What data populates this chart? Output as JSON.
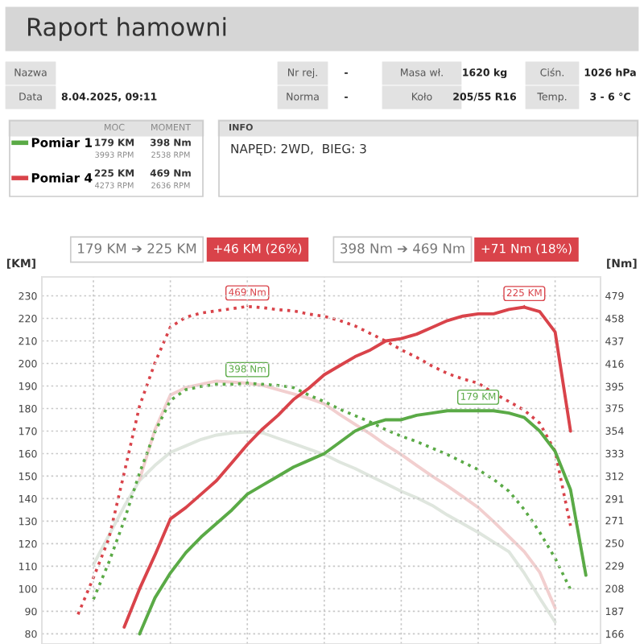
{
  "chart_data": {
    "type": "line",
    "title": "Raport hamowni",
    "ylabel": "[KM]",
    "y2label": "[Nm]",
    "ylim": [
      75.5,
      238.4
    ],
    "yticks": [
      80,
      90,
      100,
      110,
      120,
      130,
      140,
      150,
      160,
      170,
      180,
      190,
      200,
      210,
      220,
      230
    ],
    "y2lim": [
      156.6,
      496.4
    ],
    "y2ticks": [
      166,
      187,
      208,
      229,
      250,
      271,
      291,
      312,
      333,
      354,
      375,
      395,
      416,
      437,
      458,
      479
    ],
    "categories": [
      null,
      null,
      null,
      null,
      null,
      null,
      null,
      null,
      null,
      null,
      null,
      null,
      null,
      null,
      null,
      null,
      null,
      null,
      null,
      null,
      null,
      null,
      null,
      null,
      null,
      null,
      null,
      null,
      null,
      null,
      null,
      null,
      null,
      null,
      null
    ],
    "grid": true,
    "legend": "top left",
    "series": [
      {
        "color": "#dfe6de",
        "axis": "y2",
        "line_style": "solid",
        "values": [
          null,
          null,
          230,
          257,
          284,
          308,
          322,
          334,
          340,
          346,
          350,
          352,
          353,
          352,
          347,
          342,
          337,
          332,
          325,
          319,
          312,
          305,
          298,
          292,
          285,
          276,
          268,
          260,
          251,
          242,
          222,
          199,
          177,
          null,
          null
        ]
      },
      {
        "color": "#f2cfcf",
        "axis": "y2",
        "line_style": "solid",
        "values": [
          null,
          null,
          null,
          null,
          null,
          309,
          355,
          387,
          394,
          397,
          400,
          399,
          398,
          396,
          392,
          388,
          384,
          379,
          369,
          360,
          351,
          341,
          332,
          322,
          312,
          303,
          293,
          283,
          270,
          256,
          242,
          223,
          190,
          null,
          null
        ]
      },
      {
        "color": "#5aaa46",
        "axis": "y2",
        "line_style": "dotted",
        "values": [
          null,
          null,
          198,
          232,
          271,
          315,
          353,
          382,
          392,
          395,
          397,
          397,
          398,
          397,
          396,
          394,
          387,
          381,
          374,
          368,
          362,
          355,
          349,
          344,
          338,
          332,
          325,
          318,
          309,
          298,
          281,
          260,
          236,
          207,
          null
        ],
        "value_labels": [
          null,
          null,
          null,
          null,
          null,
          null,
          null,
          null,
          null,
          null,
          null,
          null,
          "398 Nm",
          null,
          null,
          null,
          null,
          null,
          null,
          null,
          null,
          null,
          null,
          null,
          null,
          null,
          null,
          null,
          null,
          null,
          null,
          null,
          null,
          null,
          null
        ]
      },
      {
        "color": "#d9434a",
        "axis": "y2",
        "line_style": "dotted",
        "values": [
          null,
          184,
          218,
          254,
          315,
          377,
          417,
          450,
          459,
          463,
          465,
          467,
          469,
          468,
          466,
          465,
          462,
          460,
          456,
          451,
          444,
          437,
          429,
          422,
          414,
          407,
          402,
          398,
          389,
          381,
          373,
          361,
          335,
          266,
          null
        ],
        "value_labels": [
          null,
          null,
          null,
          null,
          null,
          null,
          null,
          null,
          null,
          null,
          null,
          null,
          "469 Nm",
          null,
          null,
          null,
          null,
          null,
          null,
          null,
          null,
          null,
          null,
          null,
          null,
          null,
          null,
          null,
          null,
          null,
          null,
          null,
          null,
          null,
          null
        ]
      },
      {
        "name": "Pomiar 1",
        "color": "#5aaa46",
        "line_style": "solid",
        "values": [
          null,
          null,
          null,
          null,
          null,
          80,
          96,
          107,
          116,
          123,
          129,
          135,
          142,
          146,
          150,
          154,
          157,
          160,
          165,
          170,
          173,
          175,
          175,
          177,
          178,
          179,
          179,
          179,
          179,
          178,
          176,
          170,
          161,
          144,
          106
        ],
        "value_labels": [
          null,
          null,
          null,
          null,
          null,
          null,
          null,
          null,
          null,
          null,
          null,
          null,
          null,
          null,
          null,
          null,
          null,
          null,
          null,
          null,
          null,
          null,
          null,
          null,
          null,
          null,
          null,
          "179 KM",
          null,
          null,
          null,
          null,
          null,
          null,
          null
        ]
      },
      {
        "name": "Pomiar 4",
        "color": "#d9434a",
        "line_style": "solid",
        "values": [
          null,
          null,
          null,
          null,
          83,
          100,
          115,
          131,
          136,
          142,
          148,
          156,
          164,
          171,
          177,
          184,
          189,
          195,
          199,
          203,
          206,
          210,
          211,
          213,
          216,
          219,
          221,
          222,
          222,
          224,
          225,
          223,
          214,
          170,
          null
        ],
        "value_labels": [
          null,
          null,
          null,
          null,
          null,
          null,
          null,
          null,
          null,
          null,
          null,
          null,
          null,
          null,
          null,
          null,
          null,
          null,
          null,
          null,
          null,
          null,
          null,
          null,
          null,
          null,
          null,
          null,
          null,
          null,
          "225 KM",
          null,
          null,
          null,
          null
        ]
      }
    ],
    "annotations": [
      "Nazwa",
      "Nr rej.",
      "-",
      "Masa wł.",
      "1620 kg",
      "Ciśn.",
      "1026 hPa",
      "Data",
      "8.04.2025, 09:11",
      "Norma",
      "-",
      "Koło",
      "205/55 R16",
      "Temp.",
      "3 - 6 °C",
      "MOC",
      "MOMENT",
      "179 KM",
      "3993 RPM",
      "398 Nm",
      "2538 RPM",
      "225 KM",
      "4273 RPM",
      "469 Nm",
      "2636 RPM",
      "INFO",
      "NAPĘD: 2WD,  BIEG: 3",
      "179 KM ➔ 225 KM",
      "+46 KM (26%)",
      "398 Nm ➔ 469 Nm",
      "+71 Nm (18%)"
    ]
  }
}
